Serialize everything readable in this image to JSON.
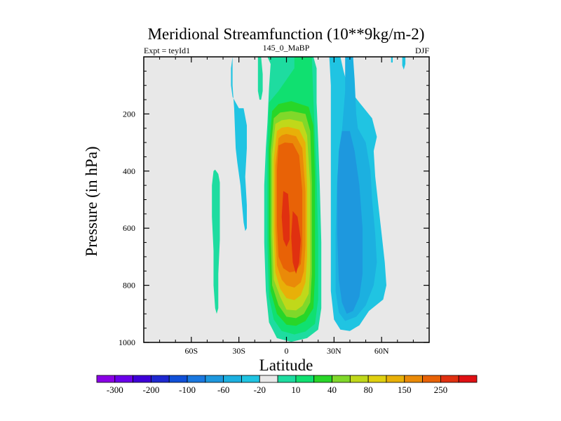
{
  "chart_data": {
    "type": "contour",
    "title": "Meridional Streamfunction (10**9kg/m-2)",
    "left_label": "Expt = teyId1",
    "center_label": "145_0_MaBP",
    "right_label": "DJF",
    "xlabel": "Latitude",
    "ylabel": "Pressure (in hPa)",
    "xlim": [
      -90,
      90
    ],
    "ylim": [
      1000,
      0
    ],
    "x_ticks": [
      {
        "value": -60,
        "label": "60S"
      },
      {
        "value": -30,
        "label": "30S"
      },
      {
        "value": 0,
        "label": "0"
      },
      {
        "value": 30,
        "label": "30N"
      },
      {
        "value": 60,
        "label": "60N"
      }
    ],
    "y_ticks": [
      {
        "value": 200,
        "label": "200"
      },
      {
        "value": 400,
        "label": "400"
      },
      {
        "value": 600,
        "label": "600"
      },
      {
        "value": 800,
        "label": "800"
      },
      {
        "value": 1000,
        "label": "1000"
      }
    ],
    "levels": [
      -300,
      -250,
      -200,
      -150,
      -100,
      -80,
      -60,
      -40,
      -20,
      -10,
      10,
      20,
      40,
      60,
      80,
      100,
      150,
      200,
      250,
      300
    ],
    "colorbar_labels": [
      "-300",
      "-200",
      "-100",
      "-60",
      "-20",
      "10",
      "40",
      "80",
      "150",
      "250"
    ],
    "colorbar_colors": [
      "#8a00e6",
      "#6a00ea",
      "#3e00d8",
      "#1e28d0",
      "#1050d8",
      "#1a78e0",
      "#1e98de",
      "#1cb0e0",
      "#20c4e2",
      "#e8e8e8",
      "#1edca0",
      "#10e070",
      "#28d628",
      "#80d82a",
      "#c0d81a",
      "#e0d010",
      "#e8b008",
      "#ea8a08",
      "#e86206",
      "#e03010",
      "#e01014"
    ],
    "background_color": "#e8e8e8",
    "regions": [
      {
        "name": "ncell-l1",
        "level": 10,
        "color": "#1edca0",
        "points": [
          [
            -12,
            0
          ],
          [
            -10,
            25
          ],
          [
            -11,
            110
          ],
          [
            -12,
            230
          ],
          [
            -13,
            320
          ],
          [
            -14,
            450
          ],
          [
            -14,
            650
          ],
          [
            -13,
            820
          ],
          [
            -11,
            930
          ],
          [
            -6,
            985
          ],
          [
            3,
            998
          ],
          [
            13,
            985
          ],
          [
            20,
            955
          ],
          [
            22,
            880
          ],
          [
            22,
            650
          ],
          [
            21,
            450
          ],
          [
            20,
            290
          ],
          [
            19,
            160
          ],
          [
            19,
            40
          ],
          [
            17,
            0
          ]
        ]
      },
      {
        "name": "ncell-l2",
        "level": 20,
        "color": "#10e070",
        "points": [
          [
            5,
            0
          ],
          [
            5,
            40
          ],
          [
            -5,
            120
          ],
          [
            -11,
            160
          ],
          [
            -12,
            320
          ],
          [
            -12,
            660
          ],
          [
            -11,
            840
          ],
          [
            -8,
            920
          ],
          [
            -3,
            960
          ],
          [
            5,
            972
          ],
          [
            12,
            962
          ],
          [
            18,
            935
          ],
          [
            20,
            850
          ],
          [
            20,
            640
          ],
          [
            19,
            420
          ],
          [
            18,
            280
          ],
          [
            17,
            150
          ],
          [
            16,
            0
          ]
        ]
      },
      {
        "name": "ncell-l3",
        "level": 40,
        "color": "#28d628",
        "points": [
          [
            -9,
            190
          ],
          [
            -11,
            320
          ],
          [
            -11,
            640
          ],
          [
            -10,
            820
          ],
          [
            -6,
            900
          ],
          [
            0,
            938
          ],
          [
            6,
            942
          ],
          [
            12,
            925
          ],
          [
            17,
            880
          ],
          [
            18,
            770
          ],
          [
            18,
            420
          ],
          [
            17,
            240
          ],
          [
            14,
            175
          ],
          [
            3,
            155
          ],
          [
            -5,
            165
          ]
        ]
      },
      {
        "name": "ncell-l4",
        "level": 60,
        "color": "#80d82a",
        "points": [
          [
            -8,
            215
          ],
          [
            -10,
            330
          ],
          [
            -10,
            620
          ],
          [
            -9,
            800
          ],
          [
            -5,
            870
          ],
          [
            0,
            910
          ],
          [
            6,
            915
          ],
          [
            11,
            900
          ],
          [
            15,
            860
          ],
          [
            16,
            760
          ],
          [
            16,
            440
          ],
          [
            15,
            260
          ],
          [
            12,
            200
          ],
          [
            3,
            190
          ],
          [
            -4,
            195
          ]
        ]
      },
      {
        "name": "ncell-l5",
        "level": 80,
        "color": "#c0d81a",
        "points": [
          [
            -7,
            235
          ],
          [
            -9,
            340
          ],
          [
            -9,
            620
          ],
          [
            -8,
            780
          ],
          [
            -4,
            840
          ],
          [
            0,
            885
          ],
          [
            6,
            888
          ],
          [
            10,
            872
          ],
          [
            14,
            830
          ],
          [
            15,
            740
          ],
          [
            15,
            450
          ],
          [
            13,
            275
          ],
          [
            10,
            228
          ],
          [
            2,
            218
          ],
          [
            -3,
            222
          ]
        ]
      },
      {
        "name": "ncell-l6",
        "level": 100,
        "color": "#e8b008",
        "points": [
          [
            -6,
            260
          ],
          [
            -8,
            360
          ],
          [
            -8,
            610
          ],
          [
            -7,
            755
          ],
          [
            -4,
            812
          ],
          [
            0,
            845
          ],
          [
            5,
            852
          ],
          [
            9,
            835
          ],
          [
            12,
            790
          ],
          [
            13,
            700
          ],
          [
            13,
            460
          ],
          [
            12,
            300
          ],
          [
            8,
            255
          ],
          [
            1,
            245
          ],
          [
            -3,
            248
          ]
        ]
      },
      {
        "name": "ncell-l7",
        "level": 150,
        "color": "#ea8a08",
        "points": [
          [
            -5,
            285
          ],
          [
            -7,
            380
          ],
          [
            -7,
            600
          ],
          [
            -6,
            730
          ],
          [
            -3,
            780
          ],
          [
            0,
            800
          ],
          [
            5,
            808
          ],
          [
            9,
            790
          ],
          [
            11,
            750
          ],
          [
            12,
            660
          ],
          [
            12,
            470
          ],
          [
            10,
            320
          ],
          [
            6,
            278
          ],
          [
            0,
            270
          ],
          [
            -3,
            275
          ]
        ]
      },
      {
        "name": "ncell-l8",
        "level": 200,
        "color": "#e86206",
        "points": [
          [
            -5,
            310
          ],
          [
            -6,
            400
          ],
          [
            -6,
            590
          ],
          [
            -5,
            700
          ],
          [
            -2,
            740
          ],
          [
            2,
            755
          ],
          [
            6,
            750
          ],
          [
            9,
            725
          ],
          [
            10,
            660
          ],
          [
            10,
            470
          ],
          [
            8,
            345
          ],
          [
            4,
            303
          ],
          [
            -1,
            300
          ]
        ]
      },
      {
        "name": "ncell-max-a",
        "level": 250,
        "color": "#e03010",
        "points": [
          [
            -2,
            470
          ],
          [
            -3,
            560
          ],
          [
            -2,
            640
          ],
          [
            0,
            665
          ],
          [
            2,
            640
          ],
          [
            2,
            560
          ],
          [
            1,
            480
          ]
        ]
      },
      {
        "name": "ncell-max-b",
        "level": 250,
        "color": "#e03010",
        "points": [
          [
            4,
            540
          ],
          [
            3,
            630
          ],
          [
            4,
            720
          ],
          [
            6,
            760
          ],
          [
            8,
            720
          ],
          [
            9,
            640
          ],
          [
            7,
            560
          ]
        ]
      },
      {
        "name": "scell-l1",
        "level": -20,
        "color": "#20c4e2",
        "points": [
          [
            27,
            0
          ],
          [
            34,
            0
          ],
          [
            36,
            50
          ],
          [
            39,
            110
          ],
          [
            46,
            160
          ],
          [
            54,
            215
          ],
          [
            57,
            280
          ],
          [
            55,
            330
          ],
          [
            56,
            420
          ],
          [
            58,
            520
          ],
          [
            60,
            620
          ],
          [
            62,
            720
          ],
          [
            63,
            800
          ],
          [
            61,
            850
          ],
          [
            52,
            890
          ],
          [
            46,
            940
          ],
          [
            40,
            960
          ],
          [
            34,
            955
          ],
          [
            30,
            920
          ],
          [
            28,
            820
          ],
          [
            28,
            620
          ],
          [
            28,
            420
          ],
          [
            28,
            220
          ],
          [
            28,
            100
          ]
        ]
      },
      {
        "name": "scell-l2",
        "level": -40,
        "color": "#1cb0e0",
        "points": [
          [
            37,
            0
          ],
          [
            42,
            0
          ],
          [
            43,
            80
          ],
          [
            44,
            200
          ],
          [
            45,
            250
          ],
          [
            50,
            300
          ],
          [
            53,
            400
          ],
          [
            54,
            500
          ],
          [
            56,
            620
          ],
          [
            57,
            720
          ],
          [
            55,
            800
          ],
          [
            50,
            870
          ],
          [
            44,
            910
          ],
          [
            37,
            925
          ],
          [
            33,
            895
          ],
          [
            31,
            820
          ],
          [
            31,
            620
          ],
          [
            32,
            420
          ],
          [
            35,
            260
          ],
          [
            37,
            120
          ]
        ]
      },
      {
        "name": "scell-l3",
        "level": -60,
        "color": "#1e98de",
        "points": [
          [
            35,
            260
          ],
          [
            33,
            330
          ],
          [
            32,
            450
          ],
          [
            32,
            620
          ],
          [
            33,
            780
          ],
          [
            35,
            860
          ],
          [
            38,
            900
          ],
          [
            42,
            890
          ],
          [
            46,
            840
          ],
          [
            48,
            760
          ],
          [
            48,
            600
          ],
          [
            46,
            450
          ],
          [
            43,
            330
          ],
          [
            40,
            260
          ]
        ]
      },
      {
        "name": "s-band-1",
        "level": -20,
        "color": "#20c4e2",
        "points": [
          [
            -34,
            0
          ],
          [
            -35,
            40
          ],
          [
            -35,
            100
          ],
          [
            -34,
            140
          ],
          [
            -30,
            180
          ],
          [
            -27,
            180
          ],
          [
            -25,
            240
          ],
          [
            -25,
            320
          ],
          [
            -26,
            420
          ],
          [
            -25,
            520
          ],
          [
            -25,
            600
          ],
          [
            -26,
            610
          ],
          [
            -27,
            580
          ],
          [
            -28,
            520
          ],
          [
            -29,
            450
          ],
          [
            -31,
            370
          ],
          [
            -32,
            320
          ],
          [
            -33,
            180
          ],
          [
            -34,
            100
          ]
        ]
      },
      {
        "name": "s-band-2",
        "level": 10,
        "color": "#1edca0",
        "points": [
          [
            -46,
            400
          ],
          [
            -47,
            450
          ],
          [
            -47,
            560
          ],
          [
            -46,
            680
          ],
          [
            -46,
            800
          ],
          [
            -45,
            880
          ],
          [
            -44,
            900
          ],
          [
            -43,
            880
          ],
          [
            -43,
            760
          ],
          [
            -42,
            640
          ],
          [
            -42,
            520
          ],
          [
            -42,
            440
          ],
          [
            -43,
            410
          ],
          [
            -45,
            395
          ]
        ]
      },
      {
        "name": "top-band",
        "level": 10,
        "color": "#1edca0",
        "points": [
          [
            -18,
            0
          ],
          [
            -16,
            0
          ],
          [
            -15,
            60
          ],
          [
            -15,
            120
          ],
          [
            -16,
            150
          ],
          [
            -17,
            150
          ],
          [
            -18,
            120
          ]
        ]
      },
      {
        "name": "top-spec",
        "level": -20,
        "color": "#20c4e2",
        "points": [
          [
            73,
            0
          ],
          [
            75,
            0
          ],
          [
            75,
            25
          ],
          [
            74,
            45
          ],
          [
            73,
            30
          ]
        ]
      },
      {
        "name": "top-spec-2",
        "level": -20,
        "color": "#20c4e2",
        "points": [
          [
            66,
            0
          ],
          [
            67,
            0
          ],
          [
            67,
            20
          ],
          [
            66,
            20
          ]
        ]
      }
    ]
  }
}
